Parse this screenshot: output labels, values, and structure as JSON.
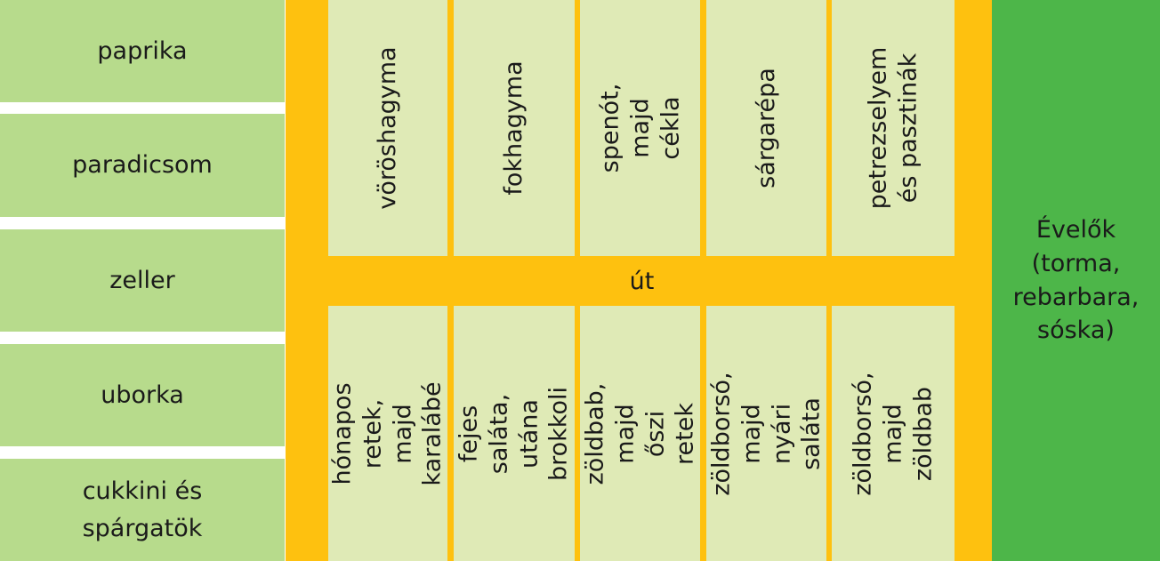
{
  "colors": {
    "left_bed": "#b7db8c",
    "path": "#fec10f",
    "vertical_bed": "#dfeab6",
    "perennial_bed": "#4db649",
    "text": "#1a1a1a"
  },
  "left_beds": [
    {
      "label": "paprika"
    },
    {
      "label": "paradicsom"
    },
    {
      "label": "zeller"
    },
    {
      "label": "uborka"
    },
    {
      "label": "cukkini és\nspárgatök"
    }
  ],
  "path_label": "út",
  "top_beds": [
    {
      "label": "vöröshagyma"
    },
    {
      "label": "fokhagyma"
    },
    {
      "label": "spenót,\nmajd cékla"
    },
    {
      "label": "sárgarépa"
    },
    {
      "label": "petrezselyem\nés pasztinák"
    }
  ],
  "bottom_beds": [
    {
      "label": "hónapos retek,\nmajd karalábé"
    },
    {
      "label": "fejes saláta,\nutána brokkoli"
    },
    {
      "label": "zöldbab, majd\nőszi retek"
    },
    {
      "label": "zöldborsó, majd\nnyári saláta"
    },
    {
      "label": "zöldborsó,\nmajd zöldbab"
    }
  ],
  "perennial_label": "Évelők\n(torma,\nrebarbara,\nsóska)"
}
